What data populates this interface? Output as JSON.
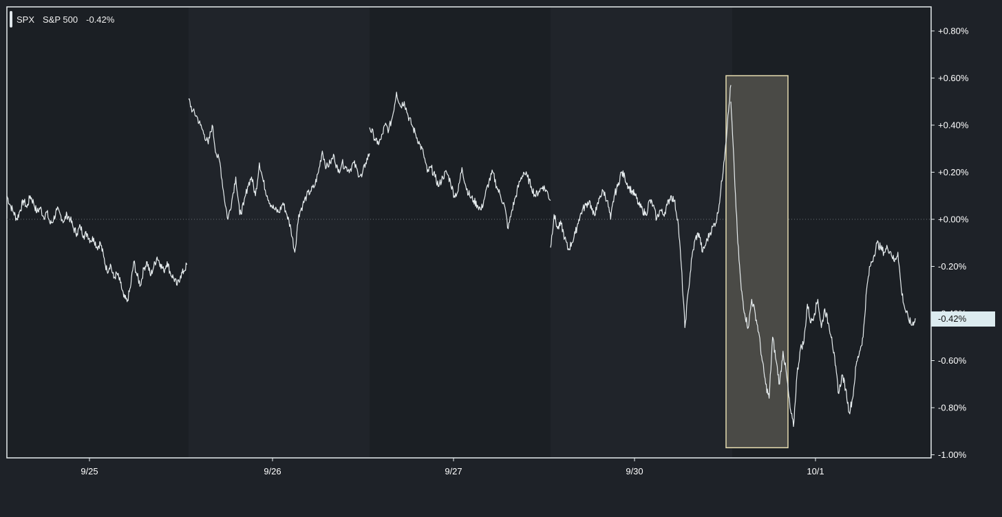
{
  "chart_data": {
    "type": "line",
    "series": [
      {
        "symbol": "SPX",
        "name": "S&P 500",
        "change_label": "-0.42%",
        "color": "#e8eef0",
        "sessions": [
          {
            "day": "9/25",
            "points": [
              0.1,
              0.06,
              0.03,
              0.0,
              0.04,
              0.08,
              0.05,
              0.1,
              0.07,
              0.03,
              0.05,
              0.01,
              0.03,
              -0.02,
              0.0,
              0.04,
              0.02,
              -0.01,
              0.02,
              0.0,
              -0.04,
              -0.06,
              -0.03,
              -0.07,
              -0.06,
              -0.09,
              -0.08,
              -0.12,
              -0.1,
              -0.16,
              -0.22,
              -0.19,
              -0.25,
              -0.23,
              -0.27,
              -0.33,
              -0.35,
              -0.29,
              -0.18,
              -0.24,
              -0.28,
              -0.21,
              -0.18,
              -0.24,
              -0.2,
              -0.16,
              -0.19,
              -0.22,
              -0.18,
              -0.23,
              -0.25,
              -0.28,
              -0.24,
              -0.22,
              -0.19
            ]
          },
          {
            "day": "9/26",
            "points": [
              0.51,
              0.46,
              0.44,
              0.4,
              0.36,
              0.32,
              0.4,
              0.28,
              0.24,
              0.1,
              0.0,
              0.08,
              0.18,
              0.02,
              0.06,
              0.14,
              0.18,
              0.1,
              0.24,
              0.16,
              0.1,
              0.06,
              0.04,
              0.03,
              0.07,
              0.02,
              -0.04,
              -0.14,
              0.02,
              0.06,
              0.1,
              0.12,
              0.14,
              0.2,
              0.29,
              0.22,
              0.24,
              0.27,
              0.2,
              0.24,
              0.22,
              0.21,
              0.24,
              0.2,
              0.18,
              0.24,
              0.28
            ]
          },
          {
            "day": "9/27",
            "points": [
              0.39,
              0.36,
              0.32,
              0.34,
              0.4,
              0.38,
              0.44,
              0.54,
              0.48,
              0.5,
              0.44,
              0.4,
              0.36,
              0.32,
              0.28,
              0.2,
              0.22,
              0.18,
              0.14,
              0.18,
              0.2,
              0.16,
              0.1,
              0.12,
              0.22,
              0.14,
              0.1,
              0.08,
              0.06,
              0.04,
              0.1,
              0.16,
              0.2,
              0.14,
              0.1,
              0.06,
              -0.04,
              0.04,
              0.1,
              0.16,
              0.2,
              0.18,
              0.14,
              0.1,
              0.12,
              0.14,
              0.12,
              0.08
            ]
          },
          {
            "day": "9/30",
            "points": [
              -0.12,
              0.02,
              -0.04,
              -0.02,
              -0.08,
              -0.13,
              -0.1,
              -0.06,
              0.0,
              0.04,
              0.06,
              0.08,
              0.02,
              0.04,
              0.1,
              0.12,
              0.08,
              0.0,
              0.1,
              0.14,
              0.2,
              0.18,
              0.14,
              0.12,
              0.1,
              0.06,
              0.04,
              0.02,
              0.08,
              0.06,
              0.0,
              0.04,
              0.02,
              0.06,
              0.1,
              0.08,
              0.0,
              -0.2,
              -0.46,
              -0.3,
              -0.16,
              -0.08,
              -0.06,
              -0.14,
              -0.1,
              -0.06,
              -0.03,
              0.0,
              0.1,
              0.24,
              0.4,
              0.57
            ]
          },
          {
            "day": "10/1",
            "points": [
              0.5,
              0.2,
              -0.1,
              -0.3,
              -0.4,
              -0.46,
              -0.34,
              -0.4,
              -0.48,
              -0.6,
              -0.7,
              -0.76,
              -0.5,
              -0.6,
              -0.7,
              -0.56,
              -0.66,
              -0.8,
              -0.88,
              -0.66,
              -0.55,
              -0.52,
              -0.36,
              -0.44,
              -0.4,
              -0.34,
              -0.46,
              -0.38,
              -0.44,
              -0.5,
              -0.62,
              -0.74,
              -0.66,
              -0.72,
              -0.82,
              -0.76,
              -0.62,
              -0.56,
              -0.5,
              -0.3,
              -0.2,
              -0.16,
              -0.1,
              -0.12,
              -0.14,
              -0.12,
              -0.14,
              -0.18,
              -0.14,
              -0.3,
              -0.38,
              -0.42,
              -0.45,
              -0.42
            ]
          }
        ]
      }
    ],
    "x_ticks": [
      "9/25",
      "9/26",
      "9/27",
      "9/30",
      "10/1"
    ],
    "y_ticks": [
      0.8,
      0.6,
      0.4,
      0.2,
      0.0,
      -0.2,
      -0.4,
      -0.6,
      -0.8,
      -1.0
    ],
    "y_tick_labels": [
      "+0.80%",
      "+0.60%",
      "+0.40%",
      "+0.20%",
      "+0.00%",
      "-0.20%",
      "-0.40%",
      "-0.60%",
      "-0.80%",
      "-1.00%"
    ],
    "ylim": [
      -1.0,
      0.9
    ],
    "zero_line": true,
    "current_value_label": "-0.42%",
    "highlight": {
      "from_value": -0.97,
      "to_value": 0.61
    },
    "colors": {
      "background": "#1e2228",
      "plot_background": "#20242a",
      "alt_band": "#1b1f24",
      "border": "#e8eef0",
      "highlight_fill": "#4a4a46",
      "highlight_stroke": "#e6dcb0",
      "axis_text": "#ffffff"
    }
  }
}
